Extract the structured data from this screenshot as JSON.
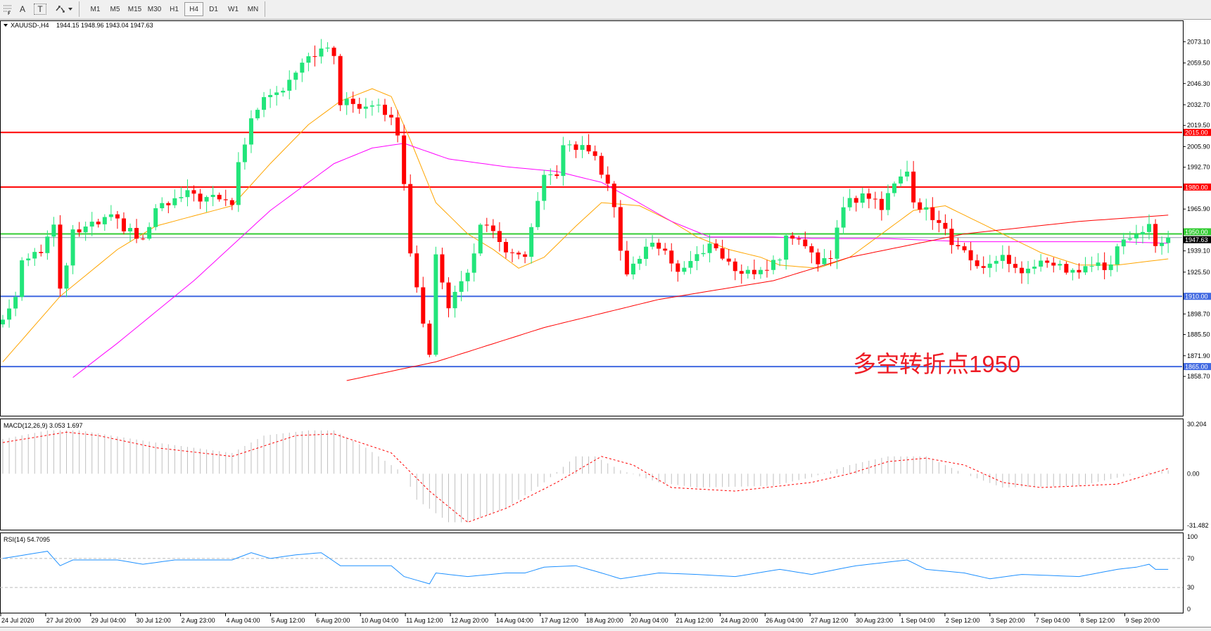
{
  "toolbar": {
    "tools": [
      {
        "icon": "fibonacci-fan-icon"
      },
      {
        "icon": "text-icon",
        "label": "A"
      },
      {
        "icon": "text-label-icon",
        "label": "T"
      },
      {
        "icon": "arrows-icon"
      }
    ],
    "timeframes": [
      "M1",
      "M5",
      "M15",
      "M30",
      "H1",
      "H4",
      "D1",
      "W1",
      "MN"
    ],
    "active_timeframe": "H4"
  },
  "header": {
    "symbol": "XAUUSD-,H4",
    "ohlc": "1944.15 1948.96 1943.04 1947.63"
  },
  "annotation": {
    "text": "多空转折点1950",
    "color": "#ee1c25"
  },
  "chart_data": [
    {
      "type": "candlestick",
      "ylim": [
        1856,
        2080
      ],
      "price_ticks": [
        "2073.10",
        "2059.50",
        "2046.30",
        "2032.70",
        "2019.50",
        "2005.90",
        "1992.70",
        "1965.90",
        "1939.10",
        "1925.50",
        "1898.70",
        "1885.50",
        "1871.90",
        "1858.70"
      ],
      "x_tick_labels": [
        "24 Jul 2020",
        "27 Jul 20:00",
        "29 Jul 04:00",
        "30 Jul 12:00",
        "2 Aug 23:00",
        "4 Aug 04:00",
        "5 Aug 12:00",
        "6 Aug 20:00",
        "10 Aug 04:00",
        "11 Aug 12:00",
        "12 Aug 20:00",
        "14 Aug 04:00",
        "17 Aug 12:00",
        "18 Aug 20:00",
        "20 Aug 04:00",
        "21 Aug 12:00",
        "24 Aug 20:00",
        "26 Aug 04:00",
        "27 Aug 12:00",
        "30 Aug 23:00",
        "1 Sep 04:00",
        "2 Sep 12:00",
        "3 Sep 20:00",
        "7 Sep 04:00",
        "8 Sep 12:00",
        "9 Sep 20:00"
      ],
      "bar_count": 184,
      "close_path": [
        [
          0,
          1895
        ],
        [
          2,
          1910
        ],
        [
          3,
          1935
        ],
        [
          6,
          1940
        ],
        [
          8,
          1955
        ],
        [
          9,
          1912
        ],
        [
          11,
          1950
        ],
        [
          17,
          1960
        ],
        [
          22,
          1945
        ],
        [
          24,
          1965
        ],
        [
          29,
          1975
        ],
        [
          36,
          1970
        ],
        [
          37,
          1995
        ],
        [
          39,
          2022
        ],
        [
          41,
          2040
        ],
        [
          44,
          2043
        ],
        [
          47,
          2062
        ],
        [
          50,
          2068
        ],
        [
          52,
          2065
        ],
        [
          53,
          2035
        ],
        [
          56,
          2032
        ],
        [
          59,
          2035
        ],
        [
          62,
          2015
        ],
        [
          63,
          1980
        ],
        [
          64,
          1940
        ],
        [
          66,
          1895
        ],
        [
          67,
          1870
        ],
        [
          68,
          1935
        ],
        [
          70,
          1905
        ],
        [
          73,
          1925
        ],
        [
          75,
          1955
        ],
        [
          77,
          1950
        ],
        [
          80,
          1935
        ],
        [
          82,
          1935
        ],
        [
          85,
          1985
        ],
        [
          87,
          1990
        ],
        [
          88,
          2005
        ],
        [
          92,
          2005
        ],
        [
          94,
          1990
        ],
        [
          96,
          1970
        ],
        [
          97,
          1940
        ],
        [
          98,
          1925
        ],
        [
          102,
          1945
        ],
        [
          104,
          1940
        ],
        [
          106,
          1925
        ],
        [
          109,
          1935
        ],
        [
          111,
          1945
        ],
        [
          114,
          1930
        ],
        [
          117,
          1925
        ],
        [
          120,
          1928
        ],
        [
          122,
          1935
        ],
        [
          123,
          1950
        ],
        [
          126,
          1945
        ],
        [
          128,
          1928
        ],
        [
          130,
          1935
        ],
        [
          131,
          1955
        ],
        [
          132,
          1970
        ],
        [
          136,
          1975
        ],
        [
          138,
          1965
        ],
        [
          140,
          1985
        ],
        [
          142,
          1990
        ],
        [
          143,
          1970
        ],
        [
          145,
          1965
        ],
        [
          148,
          1955
        ],
        [
          149,
          1940
        ],
        [
          151,
          1940
        ],
        [
          154,
          1928
        ],
        [
          157,
          1935
        ],
        [
          160,
          1925
        ],
        [
          163,
          1930
        ],
        [
          166,
          1928
        ],
        [
          169,
          1925
        ],
        [
          170,
          1930
        ],
        [
          174,
          1928
        ],
        [
          175,
          1945
        ],
        [
          178,
          1948
        ],
        [
          180,
          1958
        ],
        [
          181,
          1945
        ],
        [
          183,
          1947.63
        ]
      ],
      "last_bar": {
        "open": 1944.15,
        "high": 1948.96,
        "low": 1943.04,
        "close": 1947.63
      },
      "colors": {
        "bull": "#22e57a",
        "bear": "#ff0000"
      },
      "moving_averages": [
        {
          "color": "#ffa500",
          "points": [
            [
              0,
              1868
            ],
            [
              9,
              1910
            ],
            [
              18,
              1940
            ],
            [
              24,
              1955
            ],
            [
              36,
              1968
            ],
            [
              42,
              1995
            ],
            [
              48,
              2020
            ],
            [
              53,
              2035
            ],
            [
              58,
              2043
            ],
            [
              61,
              2038
            ],
            [
              64,
              2010
            ],
            [
              68,
              1970
            ],
            [
              73,
              1950
            ],
            [
              77,
              1940
            ],
            [
              81,
              1928
            ],
            [
              85,
              1935
            ],
            [
              90,
              1955
            ],
            [
              94,
              1970
            ],
            [
              100,
              1968
            ],
            [
              105,
              1958
            ],
            [
              109,
              1948
            ],
            [
              114,
              1940
            ],
            [
              119,
              1935
            ],
            [
              122,
              1930
            ],
            [
              128,
              1928
            ],
            [
              133,
              1935
            ],
            [
              138,
              1950
            ],
            [
              143,
              1965
            ],
            [
              148,
              1968
            ],
            [
              152,
              1960
            ],
            [
              157,
              1950
            ],
            [
              163,
              1938
            ],
            [
              169,
              1930
            ],
            [
              175,
              1930
            ],
            [
              183,
              1934
            ]
          ]
        },
        {
          "color": "#ff00ff",
          "points": [
            [
              11,
              1858
            ],
            [
              18,
              1880
            ],
            [
              30,
              1920
            ],
            [
              42,
              1965
            ],
            [
              52,
              1995
            ],
            [
              58,
              2005
            ],
            [
              63,
              2008
            ],
            [
              70,
              1998
            ],
            [
              79,
              1993
            ],
            [
              87,
              1990
            ],
            [
              94,
              1983
            ],
            [
              99,
              1972
            ],
            [
              105,
              1958
            ],
            [
              111,
              1948
            ],
            [
              121,
              1948
            ],
            [
              127,
              1947
            ],
            [
              139,
              1947
            ],
            [
              151,
              1945
            ],
            [
              163,
              1945
            ],
            [
              175,
              1945
            ],
            [
              183,
              1944
            ]
          ]
        },
        {
          "color": "#ff0000",
          "points": [
            [
              54,
              1856
            ],
            [
              68,
              1868
            ],
            [
              85,
              1890
            ],
            [
              103,
              1908
            ],
            [
              121,
              1920
            ],
            [
              133,
              1935
            ],
            [
              151,
              1950
            ],
            [
              169,
              1958
            ],
            [
              183,
              1962
            ]
          ]
        }
      ],
      "levels": [
        {
          "price": 2015,
          "label": "2015.00",
          "color": "#ff0000"
        },
        {
          "price": 1980,
          "label": "1980.00",
          "color": "#ff0000"
        },
        {
          "price": 1950,
          "label": "1950.00",
          "color": "#33cc33"
        },
        {
          "price": 1947.63,
          "label": "1947.63",
          "color": "#000000",
          "line": "#8a9aa8"
        },
        {
          "price": 1910,
          "label": "1910.00",
          "color": "#4169e1"
        },
        {
          "price": 1865,
          "label": "1865.00",
          "color": "#4169e1"
        }
      ]
    },
    {
      "type": "macd",
      "label": "MACD(12,26,9) 3.053 1.697",
      "ylim": [
        -31.482,
        30.204
      ],
      "ticks": [
        "30.204",
        "0.00",
        "-31.482"
      ],
      "histogram": [
        [
          0,
          20
        ],
        [
          7,
          25
        ],
        [
          12,
          25
        ],
        [
          24,
          18
        ],
        [
          36,
          12
        ],
        [
          41,
          22
        ],
        [
          48,
          25
        ],
        [
          52,
          25
        ],
        [
          57,
          15
        ],
        [
          63,
          0
        ],
        [
          65,
          -15
        ],
        [
          70,
          -28
        ],
        [
          73,
          -28
        ],
        [
          79,
          -20
        ],
        [
          85,
          -5
        ],
        [
          90,
          10
        ],
        [
          93,
          10
        ],
        [
          97,
          2
        ],
        [
          103,
          -5
        ],
        [
          109,
          -8
        ],
        [
          121,
          -7
        ],
        [
          127,
          -2
        ],
        [
          133,
          5
        ],
        [
          139,
          10
        ],
        [
          145,
          10
        ],
        [
          151,
          0
        ],
        [
          157,
          -8
        ],
        [
          169,
          -7
        ],
        [
          178,
          0
        ],
        [
          183,
          2
        ]
      ],
      "signal": [
        [
          0,
          18
        ],
        [
          10,
          24
        ],
        [
          15,
          22
        ],
        [
          24,
          15
        ],
        [
          36,
          10
        ],
        [
          46,
          22
        ],
        [
          52,
          23
        ],
        [
          61,
          12
        ],
        [
          67,
          -10
        ],
        [
          73,
          -28
        ],
        [
          79,
          -20
        ],
        [
          87,
          -5
        ],
        [
          94,
          10
        ],
        [
          99,
          5
        ],
        [
          105,
          -8
        ],
        [
          115,
          -10
        ],
        [
          127,
          -5
        ],
        [
          133,
          0
        ],
        [
          139,
          7
        ],
        [
          145,
          9
        ],
        [
          151,
          5
        ],
        [
          157,
          -5
        ],
        [
          163,
          -8
        ],
        [
          175,
          -6
        ],
        [
          183,
          3
        ]
      ],
      "colors": {
        "histogram": "#c0c0c0",
        "signal": "#ff0000"
      }
    },
    {
      "type": "line",
      "label": "RSI(14) 54.7095",
      "ylim": [
        0,
        100
      ],
      "ticks": [
        "100",
        "70",
        "30",
        "0"
      ],
      "levels": [
        70,
        30
      ],
      "values": [
        [
          0,
          70
        ],
        [
          7,
          80
        ],
        [
          9,
          60
        ],
        [
          11,
          68
        ],
        [
          18,
          68
        ],
        [
          22,
          62
        ],
        [
          27,
          68
        ],
        [
          36,
          68
        ],
        [
          39,
          78
        ],
        [
          42,
          70
        ],
        [
          46,
          75
        ],
        [
          50,
          78
        ],
        [
          53,
          60
        ],
        [
          61,
          60
        ],
        [
          63,
          45
        ],
        [
          67,
          35
        ],
        [
          68,
          50
        ],
        [
          73,
          45
        ],
        [
          79,
          50
        ],
        [
          82,
          50
        ],
        [
          85,
          58
        ],
        [
          90,
          60
        ],
        [
          94,
          50
        ],
        [
          97,
          42
        ],
        [
          103,
          50
        ],
        [
          109,
          48
        ],
        [
          115,
          45
        ],
        [
          122,
          55
        ],
        [
          127,
          48
        ],
        [
          131,
          55
        ],
        [
          134,
          60
        ],
        [
          142,
          68
        ],
        [
          145,
          55
        ],
        [
          151,
          50
        ],
        [
          155,
          42
        ],
        [
          160,
          48
        ],
        [
          169,
          45
        ],
        [
          175,
          55
        ],
        [
          178,
          58
        ],
        [
          180,
          62
        ],
        [
          181,
          55
        ],
        [
          183,
          55
        ]
      ],
      "color": "#1e90ff"
    }
  ]
}
